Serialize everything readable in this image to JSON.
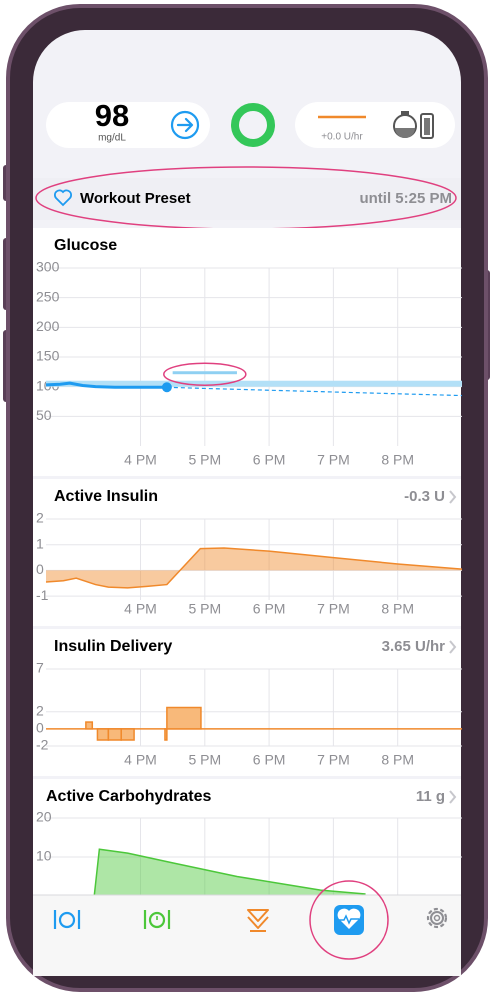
{
  "status": {
    "glucose": "98",
    "glucose_unit": "mg/dL",
    "basal_rate": "+0.0 U/hr"
  },
  "preset": {
    "name": "Workout Preset",
    "until": "until 5:25 PM"
  },
  "chart_data": [
    {
      "type": "line",
      "title": "Glucose",
      "xlim": [
        14.53,
        21.0
      ],
      "xticks": [
        {
          "value": 16,
          "label": "4 PM"
        },
        {
          "value": 17,
          "label": "5 PM"
        },
        {
          "value": 18,
          "label": "6 PM"
        },
        {
          "value": 19,
          "label": "7 PM"
        },
        {
          "value": 20,
          "label": "8 PM"
        }
      ],
      "ylim": [
        0,
        300
      ],
      "yticks": [
        50,
        100,
        150,
        200,
        250,
        300
      ],
      "target_range": {
        "values": [
          100,
          110
        ],
        "color": "#b3e0f7"
      },
      "override_range": {
        "x": [
          16.5,
          17.5
        ],
        "values": [
          121,
          126
        ],
        "color": "#8fd0f2"
      },
      "series": [
        {
          "color": "#1e9bf0",
          "dashed": false,
          "end_dot": true,
          "x": [
            14.53,
            14.75,
            14.9,
            15.1,
            15.3,
            15.6,
            16.0,
            16.41
          ],
          "values": [
            103,
            104,
            106,
            102,
            100,
            99,
            99,
            99
          ]
        },
        {
          "color": "#1e9bf0",
          "dashed": true,
          "end_dot": false,
          "x": [
            16.41,
            17,
            18,
            19,
            20,
            21
          ],
          "values": [
            99,
            97,
            94,
            91,
            88,
            85
          ]
        }
      ]
    },
    {
      "type": "area",
      "title": "Active Insulin",
      "summary": "-0.3 U",
      "xlim": [
        14.53,
        21.0
      ],
      "xticks": [
        {
          "value": 16,
          "label": "4 PM"
        },
        {
          "value": 17,
          "label": "5 PM"
        },
        {
          "value": 18,
          "label": "6 PM"
        },
        {
          "value": 19,
          "label": "7 PM"
        },
        {
          "value": 20,
          "label": "8 PM"
        }
      ],
      "ylim": [
        -1.15,
        2
      ],
      "yticks": [
        -1,
        0,
        1,
        2
      ],
      "series": [
        {
          "color": "#f0892b",
          "x": [
            14.53,
            14.8,
            15.0,
            15.3,
            15.5,
            15.8,
            16.1,
            16.41,
            16.93,
            17.3,
            18,
            19,
            20,
            21
          ],
          "values": [
            -0.45,
            -0.4,
            -0.3,
            -0.55,
            -0.65,
            -0.68,
            -0.62,
            -0.55,
            0.85,
            0.87,
            0.75,
            0.5,
            0.25,
            0.05
          ]
        }
      ]
    },
    {
      "type": "bar",
      "title": "Insulin Delivery",
      "summary": "3.65 U/hr",
      "xlim": [
        14.53,
        21.0
      ],
      "xticks": [
        {
          "value": 16,
          "label": "4 PM"
        },
        {
          "value": 17,
          "label": "5 PM"
        },
        {
          "value": 18,
          "label": "6 PM"
        },
        {
          "value": 19,
          "label": "7 PM"
        },
        {
          "value": 20,
          "label": "8 PM"
        }
      ],
      "ylim": [
        -2,
        7
      ],
      "yticks": [
        -2,
        0,
        2,
        7
      ],
      "series": [
        {
          "color": "#f0892b",
          "bins": [
            15.15,
            15.25,
            15.33,
            15.5,
            15.7,
            15.9,
            16.38,
            16.41,
            16.94
          ],
          "values": [
            0.8,
            0,
            -1.3,
            -1.3,
            -1.3,
            0,
            -1.3,
            2.5
          ]
        }
      ]
    },
    {
      "type": "area",
      "title": "Active Carbohydrates",
      "summary": "11 g",
      "xlim": [
        14.53,
        21.0
      ],
      "xticks": [
        16,
        17,
        18,
        19,
        20
      ],
      "ylim": [
        0,
        20
      ],
      "yticks": [
        10,
        20
      ],
      "series": [
        {
          "color": "#4cc73a",
          "x": [
            15.28,
            15.36,
            15.8,
            16.5,
            17.5,
            18.8,
            19.5
          ],
          "values": [
            0,
            12,
            11,
            8.5,
            5,
            1.5,
            0.5
          ]
        }
      ]
    }
  ]
}
